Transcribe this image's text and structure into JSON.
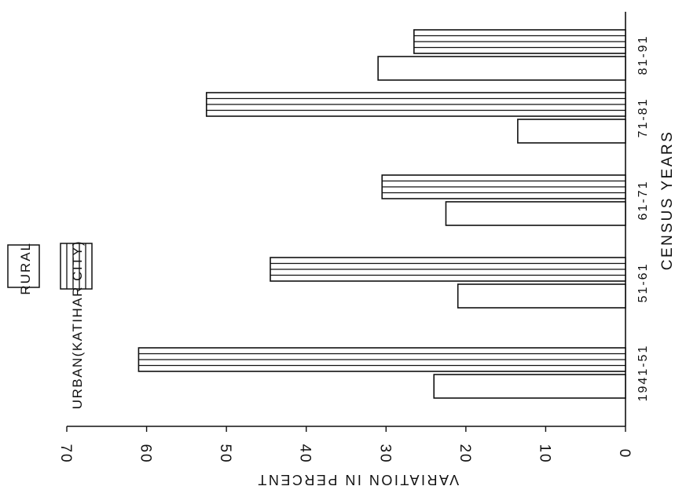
{
  "chart_data": {
    "type": "bar",
    "orientation": "horizontal (rotated page)",
    "categories": [
      "1941-51",
      "51-61",
      "61-71",
      "71-81",
      "81-91"
    ],
    "series": [
      {
        "name": "RURAL",
        "values": [
          24,
          21,
          22.5,
          13.5,
          31
        ]
      },
      {
        "name": "URBAN(KATIHAR CITY)",
        "values": [
          61,
          44.5,
          30.5,
          52.5,
          26.5
        ]
      }
    ],
    "xlabel": "CENSUS YEARS",
    "ylabel": "VARIATION IN PERCENT",
    "ylim": [
      0,
      70
    ],
    "yticks": [
      0,
      10,
      20,
      30,
      40,
      50,
      60,
      70
    ],
    "ytick_labels": [
      "0",
      "10",
      "20",
      "30",
      "40",
      "50",
      "60",
      "70"
    ],
    "legend_position": "top-left",
    "grid": false,
    "colors": {
      "ink": "#111111",
      "fill": "#ffffff"
    }
  }
}
